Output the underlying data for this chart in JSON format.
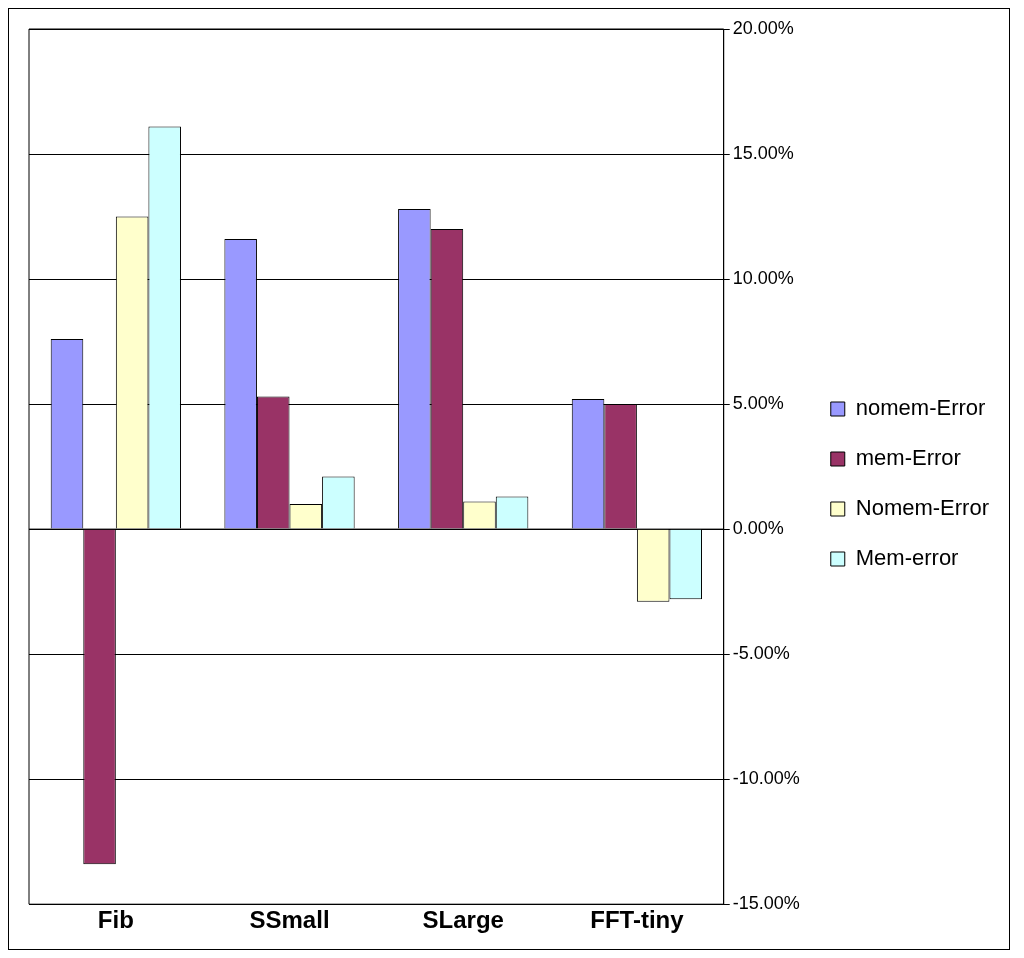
{
  "chart_data": {
    "type": "bar",
    "categories": [
      "Fib",
      "SSmall",
      "SLarge",
      "FFT-tiny"
    ],
    "series": [
      {
        "name": "nomem-Error",
        "color": "#9999ff",
        "values": [
          7.6,
          11.6,
          12.8,
          5.2
        ]
      },
      {
        "name": "mem-Error",
        "color": "#993366",
        "values": [
          -13.4,
          5.3,
          12.0,
          5.0
        ]
      },
      {
        "name": "Nomem-Error",
        "color": "#ffffcc",
        "values": [
          12.5,
          1.0,
          1.1,
          -2.9
        ]
      },
      {
        "name": "Mem-error",
        "color": "#ccffff",
        "values": [
          16.1,
          2.1,
          1.3,
          -2.8
        ]
      }
    ],
    "ylim": [
      -15,
      20
    ],
    "yticks": [
      {
        "value": -15,
        "label": "-15.00%"
      },
      {
        "value": -10,
        "label": "-10.00%"
      },
      {
        "value": -5,
        "label": "-5.00%"
      },
      {
        "value": 0,
        "label": "0.00%"
      },
      {
        "value": 5,
        "label": "5.00%"
      },
      {
        "value": 10,
        "label": "10.00%"
      },
      {
        "value": 15,
        "label": "15.00%"
      },
      {
        "value": 20,
        "label": "20.00%"
      }
    ],
    "grid": "y",
    "legend": "right"
  }
}
